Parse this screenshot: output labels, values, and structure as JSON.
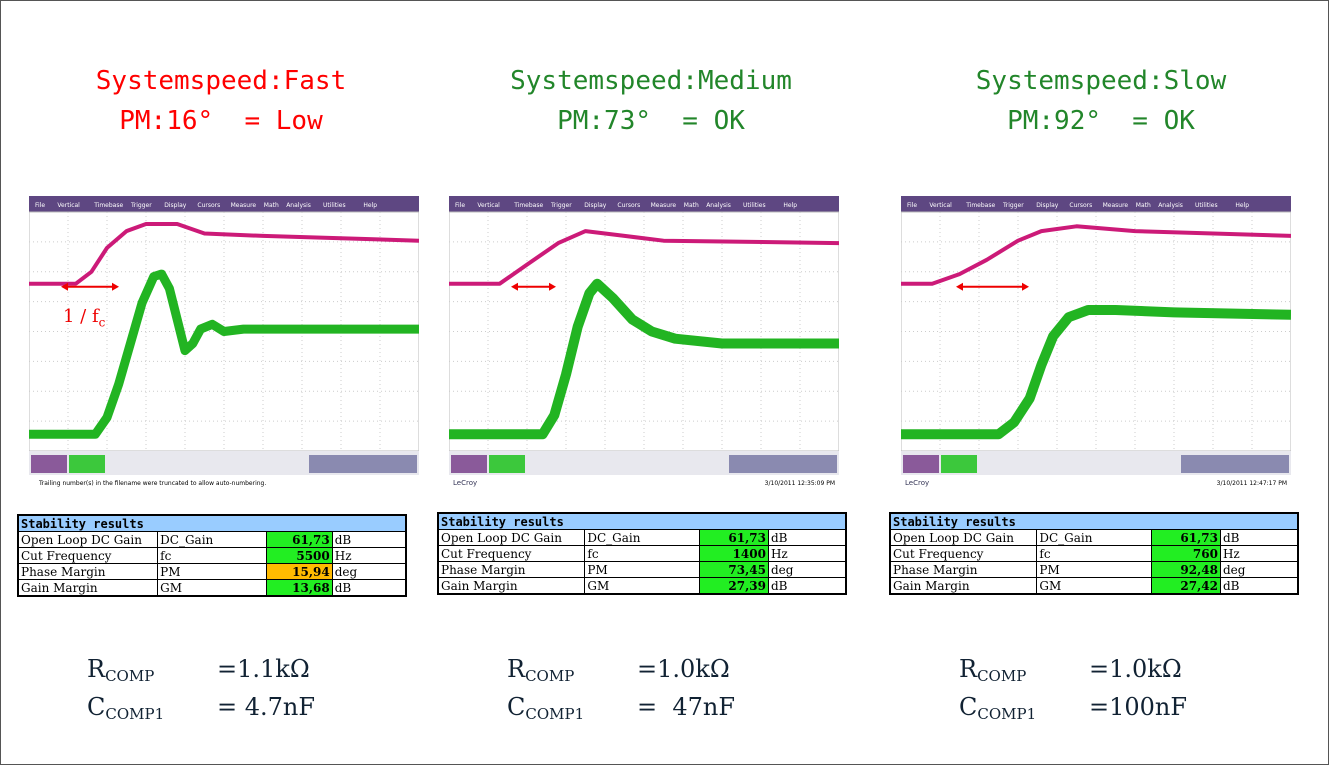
{
  "panels": [
    {
      "title": "Systemspeed:Fast",
      "pm_line": "PM:16°  = Low",
      "title_color": "#ff0000",
      "scope": {
        "footer_note": "Trailing number(s) in the filename were truncated to allow auto-numbering."
      },
      "annotation": {
        "text": "1 / f",
        "sub": "c"
      },
      "table": {
        "title": "Stability results",
        "rows": [
          {
            "label": "Open Loop DC Gain",
            "symbol": "DC_Gain",
            "value": "61,73",
            "unit": "dB",
            "color": "#22ee22"
          },
          {
            "label": "Cut Frequency",
            "symbol": "fc",
            "value": "5500",
            "unit": "Hz",
            "color": "#22ee22"
          },
          {
            "label": "Phase Margin",
            "symbol": "PM",
            "value": "15,94",
            "unit": "deg",
            "color": "#ffbb00"
          },
          {
            "label": "Gain Margin",
            "symbol": "GM",
            "value": "13,68",
            "unit": "dB",
            "color": "#22ee22"
          }
        ]
      },
      "components": [
        {
          "symbol": "R",
          "sub": "COMP",
          "value": "=1.1kΩ"
        },
        {
          "symbol": "C",
          "sub": "COMP1",
          "value": "= 4.7nF"
        }
      ]
    },
    {
      "title": "Systemspeed:Medium",
      "pm_line": "PM:73°  = OK",
      "title_color": "#22862a",
      "scope": {
        "brand": "LeCroy",
        "date": "3/10/2011 12:35:09 PM"
      },
      "table": {
        "title": "Stability results",
        "rows": [
          {
            "label": "Open Loop DC Gain",
            "symbol": "DC_Gain",
            "value": "61,73",
            "unit": "dB",
            "color": "#22ee22"
          },
          {
            "label": "Cut Frequency",
            "symbol": "fc",
            "value": "1400",
            "unit": "Hz",
            "color": "#22ee22"
          },
          {
            "label": "Phase Margin",
            "symbol": "PM",
            "value": "73,45",
            "unit": "deg",
            "color": "#22ee22"
          },
          {
            "label": "Gain Margin",
            "symbol": "GM",
            "value": "27,39",
            "unit": "dB",
            "color": "#22ee22"
          }
        ]
      },
      "components": [
        {
          "symbol": "R",
          "sub": "COMP",
          "value": "=1.0kΩ"
        },
        {
          "symbol": "C",
          "sub": "COMP1",
          "value": "=  47nF"
        }
      ]
    },
    {
      "title": "Systemspeed:Slow",
      "pm_line": "PM:92°  = OK",
      "title_color": "#22862a",
      "scope": {
        "brand": "LeCroy",
        "date": "3/10/2011 12:47:17 PM"
      },
      "table": {
        "title": "Stability results",
        "rows": [
          {
            "label": "Open Loop DC Gain",
            "symbol": "DC_Gain",
            "value": "61,73",
            "unit": "dB",
            "color": "#22ee22"
          },
          {
            "label": "Cut Frequency",
            "symbol": "fc",
            "value": "760",
            "unit": "Hz",
            "color": "#22ee22"
          },
          {
            "label": "Phase Margin",
            "symbol": "PM",
            "value": "92,48",
            "unit": "deg",
            "color": "#22ee22"
          },
          {
            "label": "Gain Margin",
            "symbol": "GM",
            "value": "27,42",
            "unit": "dB",
            "color": "#22ee22"
          }
        ]
      },
      "components": [
        {
          "symbol": "R",
          "sub": "COMP",
          "value": "=1.0kΩ"
        },
        {
          "symbol": "C",
          "sub": "COMP1",
          "value": "=100nF"
        }
      ]
    }
  ],
  "scope_menu": [
    "File",
    "Vertical",
    "Timebase",
    "Trigger",
    "Display",
    "Cursors",
    "Measure",
    "Math",
    "Analysis",
    "Utilities",
    "Help"
  ]
}
